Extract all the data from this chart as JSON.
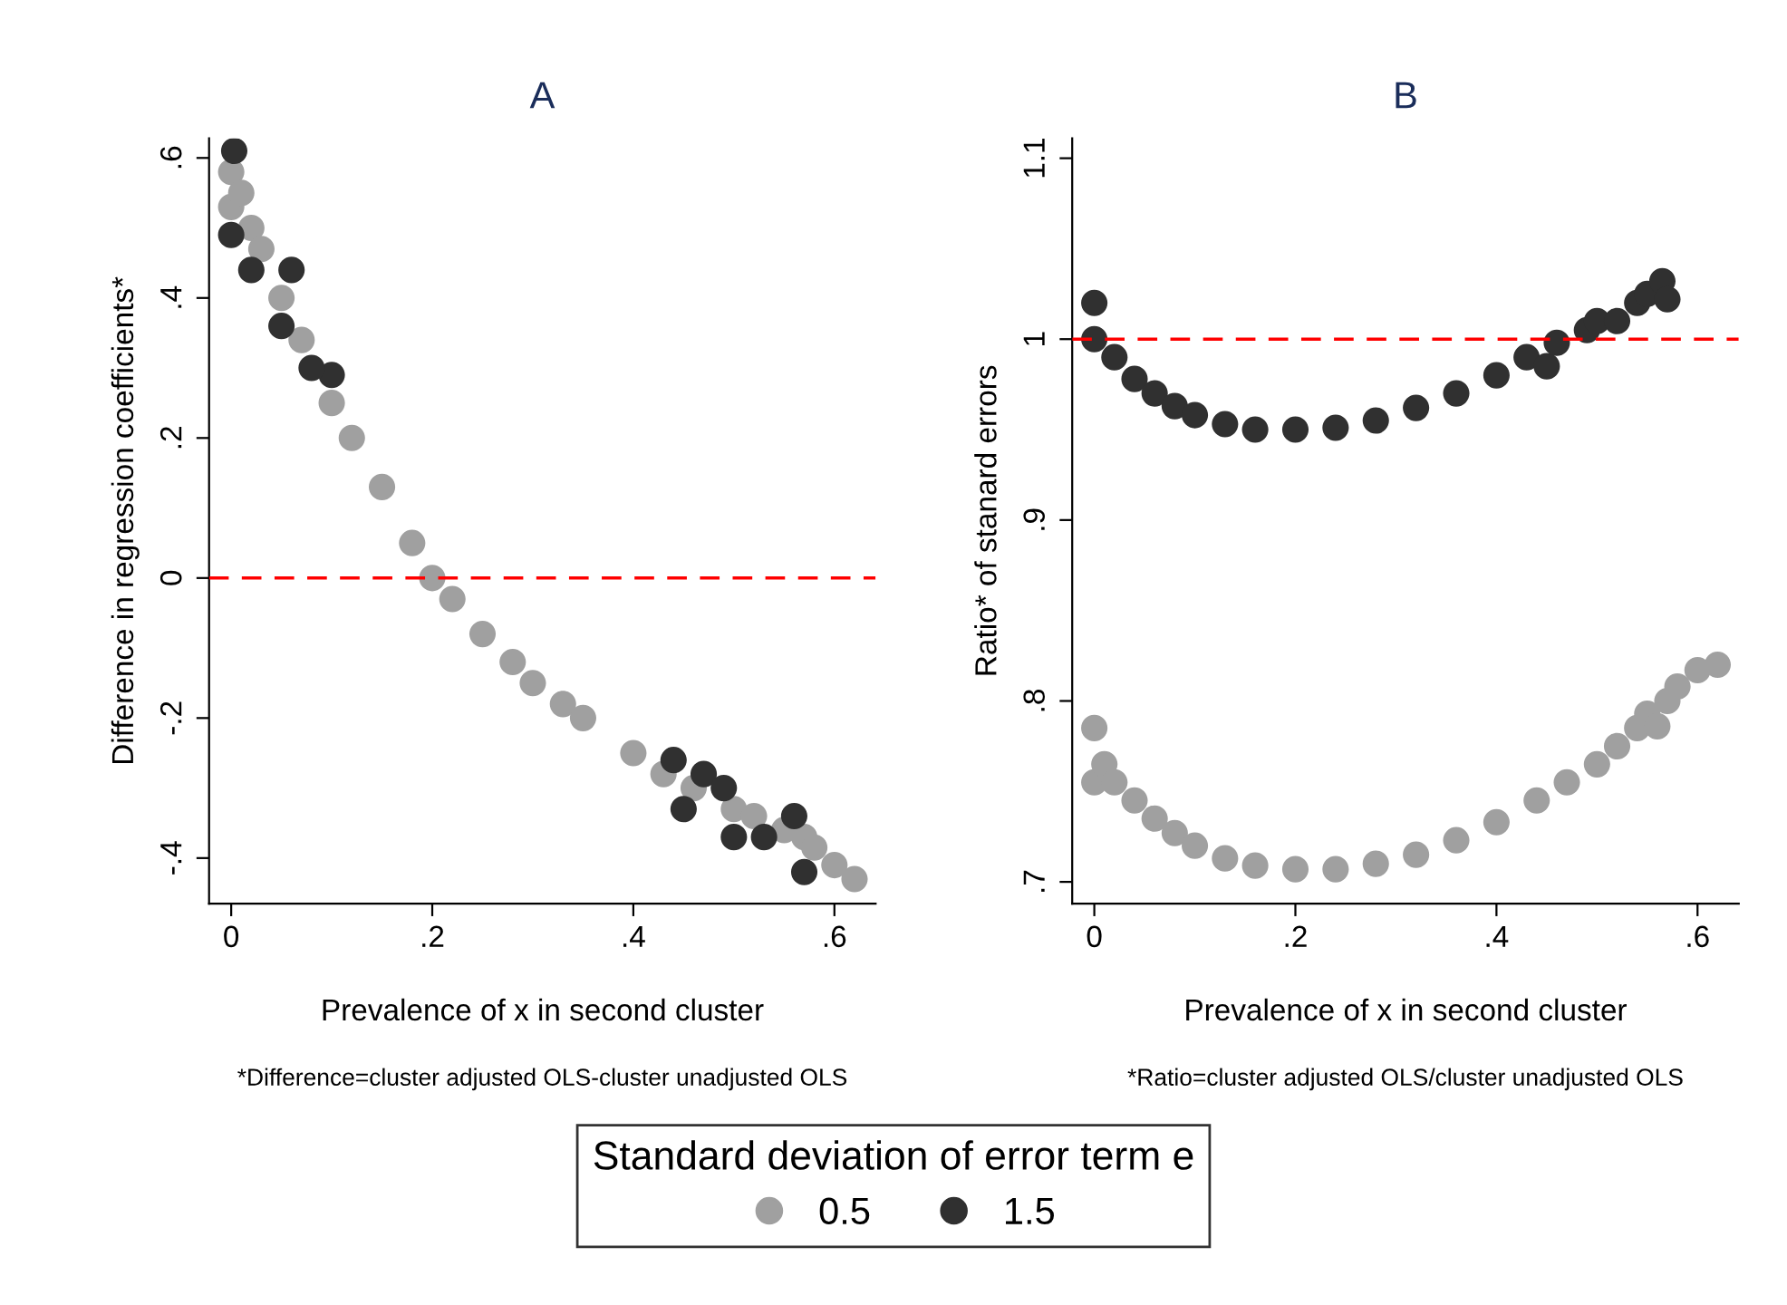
{
  "chart_data": [
    {
      "type": "scatter",
      "title": "A",
      "xlabel": "Prevalence of x in second cluster",
      "ylabel": "Difference in regression coefficients*",
      "annotations": [
        "*Difference=cluster adjusted OLS-cluster unadjusted OLS"
      ],
      "legend_title": "Standard deviation of error term e",
      "legend": "bottom",
      "marker": "circle",
      "grid": false,
      "xlim": [
        -0.022,
        0.641
      ],
      "ylim": [
        -0.465,
        0.628
      ],
      "xticks": [
        {
          "value": 0,
          "label": "0"
        },
        {
          "value": 0.2,
          "label": ".2"
        },
        {
          "value": 0.4,
          "label": ".4"
        },
        {
          "value": 0.6,
          "label": ".6"
        }
      ],
      "yticks": [
        {
          "value": -0.4,
          "label": "-.4"
        },
        {
          "value": -0.2,
          "label": "-.2"
        },
        {
          "value": 0,
          "label": "0"
        },
        {
          "value": 0.2,
          "label": ".2"
        },
        {
          "value": 0.4,
          "label": ".4"
        },
        {
          "value": 0.6,
          "label": ".6"
        }
      ],
      "ref_lines": [
        {
          "axis": "y",
          "value": 0,
          "color": "#ff0000",
          "line_style": "dashed"
        }
      ],
      "series": [
        {
          "name": "0.5",
          "color": "#a0a0a0",
          "x": [
            0,
            0,
            0.01,
            0.02,
            0.03,
            0.05,
            0.07,
            0.1,
            0.12,
            0.15,
            0.18,
            0.2,
            0.22,
            0.25,
            0.28,
            0.3,
            0.33,
            0.35,
            0.4,
            0.43,
            0.46,
            0.5,
            0.52,
            0.55,
            0.57,
            0.58,
            0.6,
            0.62
          ],
          "values": [
            0.58,
            0.53,
            0.55,
            0.5,
            0.47,
            0.4,
            0.34,
            0.25,
            0.2,
            0.13,
            0.05,
            0.0,
            -0.03,
            -0.08,
            -0.12,
            -0.15,
            -0.18,
            -0.2,
            -0.25,
            -0.28,
            -0.3,
            -0.33,
            -0.34,
            -0.36,
            -0.37,
            -0.385,
            -0.41,
            -0.43
          ]
        },
        {
          "name": "1.5",
          "color": "#303030",
          "x": [
            0.003,
            0,
            0.02,
            0.06,
            0.05,
            0.1,
            0.08,
            0.44,
            0.47,
            0.49,
            0.45,
            0.5,
            0.53,
            0.56,
            0.57
          ],
          "values": [
            0.61,
            0.49,
            0.44,
            0.44,
            0.36,
            0.29,
            0.3,
            -0.26,
            -0.28,
            -0.3,
            -0.33,
            -0.37,
            -0.37,
            -0.34,
            -0.42
          ]
        }
      ]
    },
    {
      "type": "scatter",
      "title": "B",
      "xlabel": "Prevalence of x in second cluster",
      "ylabel": "Ratio* of stanard errors",
      "annotations": [
        "*Ratio=cluster adjusted OLS/cluster unadjusted OLS"
      ],
      "marker": "circle",
      "grid": false,
      "xlim": [
        -0.022,
        0.641
      ],
      "ylim": [
        0.688,
        1.111
      ],
      "xticks": [
        {
          "value": 0,
          "label": "0"
        },
        {
          "value": 0.2,
          "label": ".2"
        },
        {
          "value": 0.4,
          "label": ".4"
        },
        {
          "value": 0.6,
          "label": ".6"
        }
      ],
      "yticks": [
        {
          "value": 0.7,
          "label": ".7"
        },
        {
          "value": 0.8,
          "label": ".8"
        },
        {
          "value": 0.9,
          "label": ".9"
        },
        1,
        1.1
      ],
      "ref_lines": [
        {
          "axis": "y",
          "value": 1,
          "color": "#ff0000",
          "line_style": "dashed"
        }
      ],
      "series": [
        {
          "name": "0.5",
          "color": "#a0a0a0",
          "x": [
            0,
            0,
            0.01,
            0.02,
            0.04,
            0.06,
            0.08,
            0.1,
            0.13,
            0.16,
            0.2,
            0.24,
            0.28,
            0.32,
            0.36,
            0.4,
            0.44,
            0.47,
            0.5,
            0.52,
            0.54,
            0.55,
            0.56,
            0.57,
            0.58,
            0.6,
            0.62
          ],
          "values": [
            0.785,
            0.755,
            0.765,
            0.755,
            0.745,
            0.735,
            0.727,
            0.72,
            0.713,
            0.709,
            0.707,
            0.707,
            0.71,
            0.715,
            0.723,
            0.733,
            0.745,
            0.755,
            0.765,
            0.775,
            0.785,
            0.793,
            0.786,
            0.8,
            0.808,
            0.817,
            0.82
          ]
        },
        {
          "name": "1.5",
          "color": "#303030",
          "x": [
            0,
            0,
            0.02,
            0.04,
            0.06,
            0.08,
            0.1,
            0.13,
            0.16,
            0.2,
            0.24,
            0.28,
            0.32,
            0.36,
            0.4,
            0.43,
            0.45,
            0.46,
            0.49,
            0.5,
            0.52,
            0.54,
            0.55,
            0.565,
            0.57
          ],
          "values": [
            1.02,
            1.0,
            0.99,
            0.978,
            0.97,
            0.963,
            0.958,
            0.953,
            0.95,
            0.95,
            0.951,
            0.955,
            0.962,
            0.97,
            0.98,
            0.99,
            0.985,
            0.998,
            1.005,
            1.01,
            1.01,
            1.02,
            1.025,
            1.032,
            1.022
          ]
        }
      ]
    }
  ]
}
